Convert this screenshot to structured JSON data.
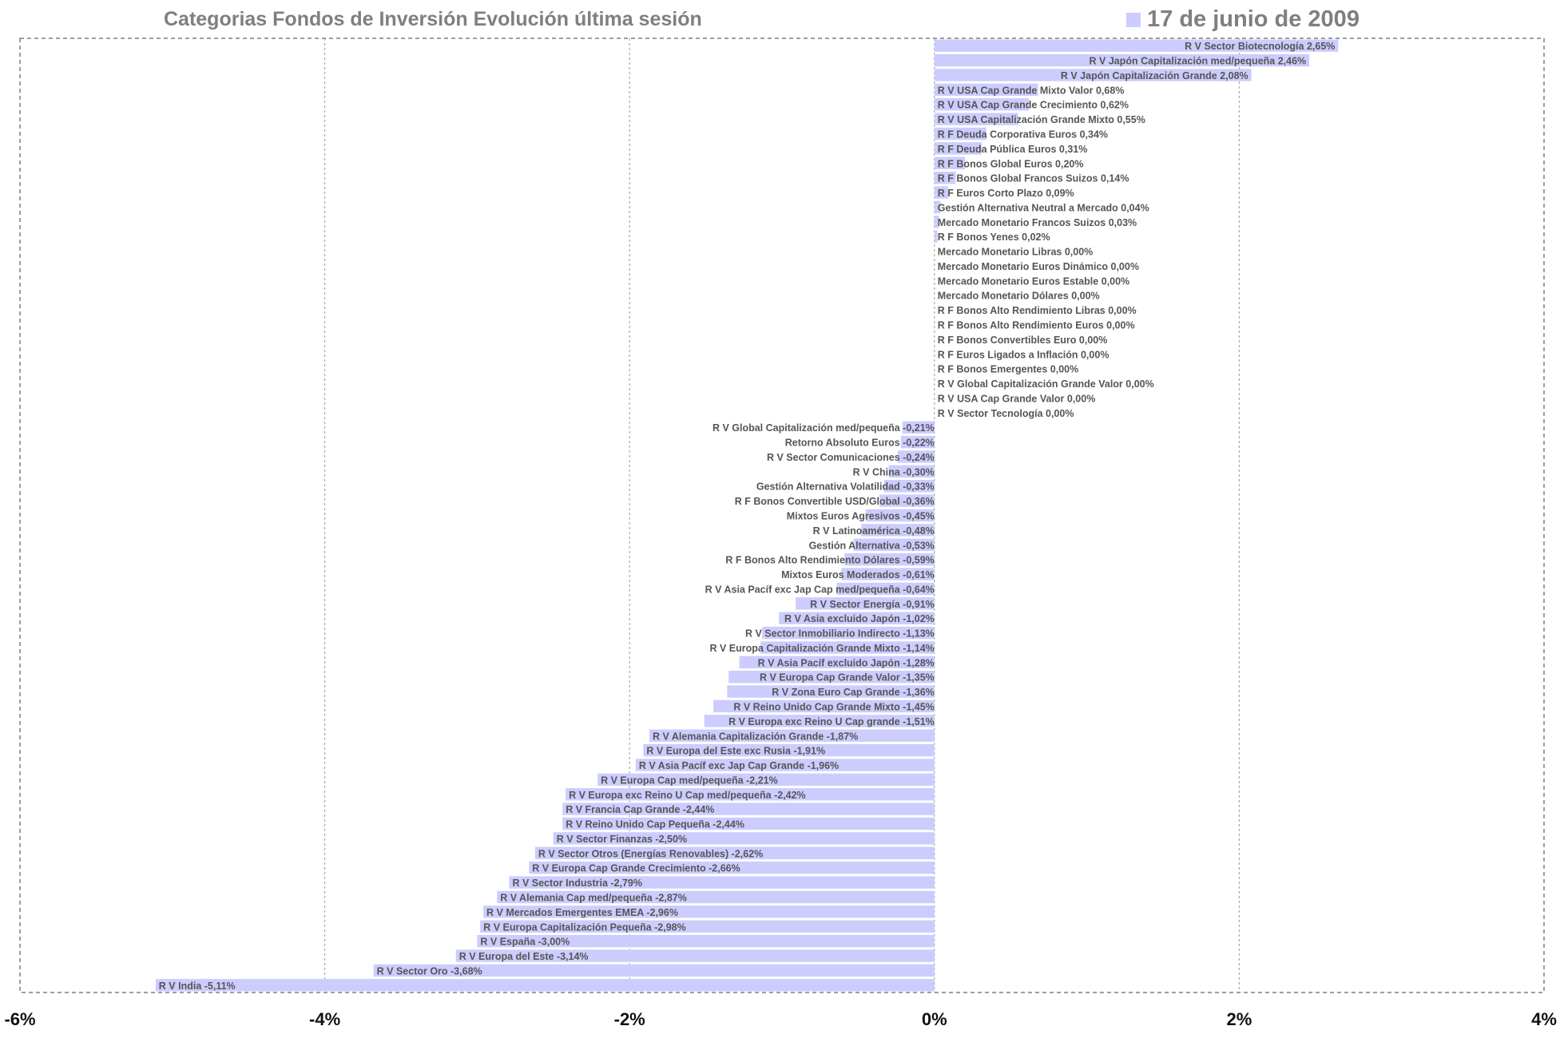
{
  "chart_data": {
    "type": "bar",
    "orientation": "horizontal",
    "title": "Categorias Fondos de Inversión Evolución última sesión",
    "legend": {
      "position": "top-right",
      "label": "17 de junio de 2009",
      "color": "#ccccff"
    },
    "bar_color": "#ccccff",
    "xlim": [
      -6,
      4
    ],
    "x_ticks": [
      "-6%",
      "-4%",
      "-2%",
      "0%",
      "2%",
      "4%"
    ],
    "x_tick_values": [
      -6,
      -4,
      -2,
      0,
      2,
      4
    ],
    "grid": {
      "vertical": true,
      "style": "dotted"
    },
    "bars": [
      {
        "label": "R V Sector Biotecnología 2,65%",
        "value": 2.65
      },
      {
        "label": "R V Japón Capitalización med/pequeña 2,46%",
        "value": 2.46
      },
      {
        "label": "R V Japón Capitalización Grande 2,08%",
        "value": 2.08
      },
      {
        "label": "R V USA Cap Grande Mixto Valor 0,68%",
        "value": 0.68
      },
      {
        "label": "R V USA Cap Grande Crecimiento 0,62%",
        "value": 0.62
      },
      {
        "label": "R V USA Capitalización Grande Mixto 0,55%",
        "value": 0.55
      },
      {
        "label": "R F Deuda Corporativa Euros 0,34%",
        "value": 0.34
      },
      {
        "label": "R F Deuda Pública Euros 0,31%",
        "value": 0.31
      },
      {
        "label": "R F Bonos Global Euros 0,20%",
        "value": 0.2
      },
      {
        "label": "R F Bonos Global Francos Suizos 0,14%",
        "value": 0.14
      },
      {
        "label": "R F Euros Corto Plazo 0,09%",
        "value": 0.09
      },
      {
        "label": "Gestión Alternativa Neutral a Mercado 0,04%",
        "value": 0.04
      },
      {
        "label": "Mercado Monetario Francos Suizos 0,03%",
        "value": 0.03
      },
      {
        "label": "R F Bonos Yenes 0,02%",
        "value": 0.02
      },
      {
        "label": "Mercado Monetario Libras 0,00%",
        "value": 0.0
      },
      {
        "label": "Mercado Monetario Euros Dinámico 0,00%",
        "value": 0.0
      },
      {
        "label": "Mercado Monetario Euros Estable 0,00%",
        "value": 0.0
      },
      {
        "label": "Mercado Monetario Dólares 0,00%",
        "value": 0.0
      },
      {
        "label": "R F Bonos Alto Rendimiento Libras 0,00%",
        "value": 0.0
      },
      {
        "label": "R F Bonos Alto Rendimiento Euros 0,00%",
        "value": 0.0
      },
      {
        "label": "R F Bonos Convertibles Euro 0,00%",
        "value": 0.0
      },
      {
        "label": "R F Euros Ligados a Inflación 0,00%",
        "value": 0.0
      },
      {
        "label": "R F Bonos Emergentes 0,00%",
        "value": 0.0
      },
      {
        "label": "R V Global Capitalización Grande Valor 0,00%",
        "value": 0.0
      },
      {
        "label": "R V USA Cap Grande Valor 0,00%",
        "value": 0.0
      },
      {
        "label": "R V Sector Tecnología 0,00%",
        "value": 0.0
      },
      {
        "label": "R V Global Capitalización med/pequeña -0,21%",
        "value": -0.21
      },
      {
        "label": "Retorno Absoluto Euros -0,22%",
        "value": -0.22
      },
      {
        "label": "R V Sector Comunicaciones -0,24%",
        "value": -0.24
      },
      {
        "label": "R V China -0,30%",
        "value": -0.3
      },
      {
        "label": "Gestión Alternativa Volatilidad -0,33%",
        "value": -0.33
      },
      {
        "label": "R F Bonos Convertible USD/Global -0,36%",
        "value": -0.36
      },
      {
        "label": "Mixtos Euros Agresivos -0,45%",
        "value": -0.45
      },
      {
        "label": "R V Latinoamérica -0,48%",
        "value": -0.48
      },
      {
        "label": "Gestión Alternativa -0,53%",
        "value": -0.53
      },
      {
        "label": "R F Bonos Alto Rendimiento Dólares -0,59%",
        "value": -0.59
      },
      {
        "label": "Mixtos Euros Moderados -0,61%",
        "value": -0.61
      },
      {
        "label": "R V Asia Pacíf exc Jap Cap med/pequeña -0,64%",
        "value": -0.64
      },
      {
        "label": "R V Sector Energía -0,91%",
        "value": -0.91
      },
      {
        "label": "R V Asia excluido Japón -1,02%",
        "value": -1.02
      },
      {
        "label": "R V Sector Inmobiliario Indirecto -1,13%",
        "value": -1.13
      },
      {
        "label": "R V Europa Capitalización Grande Mixto -1,14%",
        "value": -1.14
      },
      {
        "label": "R V Asia Pacíf excluido Japón -1,28%",
        "value": -1.28
      },
      {
        "label": "R V Europa Cap Grande Valor -1,35%",
        "value": -1.35
      },
      {
        "label": "R V Zona Euro Cap Grande -1,36%",
        "value": -1.36
      },
      {
        "label": "R V Reino Unido Cap Grande Mixto -1,45%",
        "value": -1.45
      },
      {
        "label": "R V Europa exc Reino U Cap grande -1,51%",
        "value": -1.51
      },
      {
        "label": "R V Alemania Capitalización Grande -1,87%",
        "value": -1.87
      },
      {
        "label": "R V Europa del Este exc Rusia -1,91%",
        "value": -1.91
      },
      {
        "label": "R V Asia Pacíf exc Jap Cap Grande -1,96%",
        "value": -1.96
      },
      {
        "label": "R V Europa Cap med/pequeña -2,21%",
        "value": -2.21
      },
      {
        "label": "R V Europa exc Reino U Cap med/pequeña -2,42%",
        "value": -2.42
      },
      {
        "label": "R V Francia Cap Grande -2,44%",
        "value": -2.44
      },
      {
        "label": "R V Reino Unido Cap Pequeña -2,44%",
        "value": -2.44
      },
      {
        "label": "R V Sector Finanzas -2,50%",
        "value": -2.5
      },
      {
        "label": "R V Sector Otros (Energías Renovables) -2,62%",
        "value": -2.62
      },
      {
        "label": "R V Europa Cap Grande Crecimiento -2,66%",
        "value": -2.66
      },
      {
        "label": "R V Sector Industria -2,79%",
        "value": -2.79
      },
      {
        "label": "R V Alemania Cap med/pequeña -2,87%",
        "value": -2.87
      },
      {
        "label": "R V Mercados Emergentes EMEA -2,96%",
        "value": -2.96
      },
      {
        "label": "R V Europa Capitalización Pequeña -2,98%",
        "value": -2.98
      },
      {
        "label": "R V España -3,00%",
        "value": -3.0
      },
      {
        "label": "R V Europa del Este -3,14%",
        "value": -3.14
      },
      {
        "label": "R V Sector Oro -3,68%",
        "value": -3.68
      },
      {
        "label": "R V India -5,11%",
        "value": -5.11
      }
    ]
  }
}
